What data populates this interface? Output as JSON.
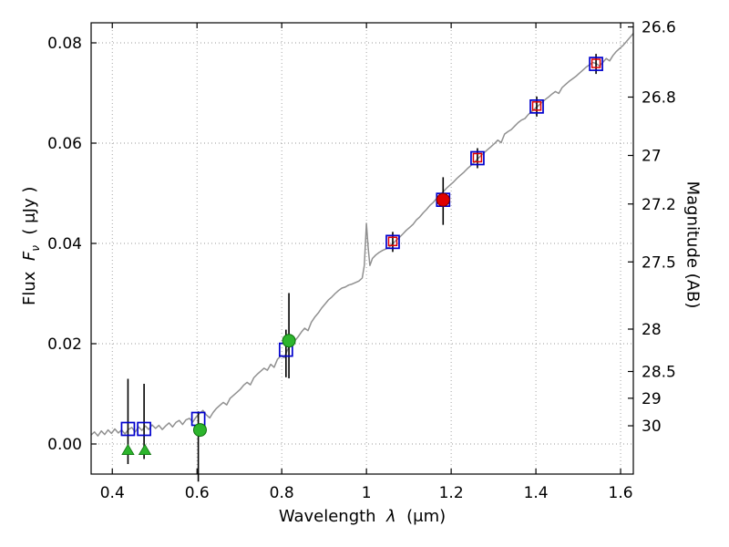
{
  "figure": {
    "xlabel": {
      "prefix": "Wavelength",
      "symbol": "λ",
      "suffix": "(μm)"
    },
    "ylabel": {
      "prefix": "Flux",
      "symbol": "F",
      "subscript": "ν",
      "suffix": "( μJy )"
    },
    "right_label": "Magnitude (AB)"
  },
  "chart_data": {
    "type": "line",
    "title": "",
    "xlabel": "Wavelength λ (μm)",
    "ylabel": "Flux Fν ( μJy )",
    "y2label": "Magnitude (AB)",
    "xlim": [
      0.35,
      1.63
    ],
    "ylim": [
      -0.006,
      0.084
    ],
    "grid": true,
    "legend": "none",
    "x_ticks": {
      "values": [
        0.4,
        0.6,
        0.8,
        1.0,
        1.2,
        1.4,
        1.6
      ],
      "labels": [
        "0.4",
        "0.6",
        "0.8",
        "1",
        "1.2",
        "1.4",
        "1.6"
      ]
    },
    "y_ticks": {
      "values": [
        0.0,
        0.02,
        0.04,
        0.06,
        0.08
      ],
      "labels": [
        "0.00",
        "0.02",
        "0.04",
        "0.06",
        "0.08"
      ]
    },
    "y2_ticks": {
      "magnitudes": [
        26.6,
        26.8,
        27.0,
        27.2,
        27.5,
        28.0,
        28.5,
        29.0,
        30.0
      ],
      "labels": [
        "26.6",
        "26.8",
        "27",
        "27.2",
        "27.5",
        "28",
        "28.5",
        "29",
        "30"
      ],
      "mag_zeropoint": 23.9
    },
    "colors": {
      "spectrum": "#909090",
      "blue": "#0000cd",
      "red": "#e00000",
      "green": "#2db52d",
      "errorbar": "#000000",
      "grid": "#9a9a9a",
      "frame": "#000000"
    },
    "spectrum": {
      "x": [
        0.35,
        0.358,
        0.366,
        0.374,
        0.382,
        0.39,
        0.398,
        0.406,
        0.414,
        0.422,
        0.43,
        0.438,
        0.446,
        0.454,
        0.462,
        0.47,
        0.478,
        0.486,
        0.494,
        0.502,
        0.51,
        0.518,
        0.526,
        0.534,
        0.542,
        0.55,
        0.558,
        0.566,
        0.574,
        0.582,
        0.59,
        0.598,
        0.606,
        0.614,
        0.622,
        0.63,
        0.638,
        0.646,
        0.654,
        0.662,
        0.67,
        0.678,
        0.686,
        0.694,
        0.702,
        0.71,
        0.718,
        0.726,
        0.734,
        0.742,
        0.75,
        0.758,
        0.766,
        0.774,
        0.782,
        0.79,
        0.798,
        0.806,
        0.814,
        0.822,
        0.83,
        0.838,
        0.846,
        0.854,
        0.862,
        0.87,
        0.878,
        0.886,
        0.894,
        0.902,
        0.91,
        0.918,
        0.926,
        0.934,
        0.942,
        0.95,
        0.958,
        0.966,
        0.974,
        0.982,
        0.99,
        0.995,
        1.0,
        1.004,
        1.008,
        1.014,
        1.022,
        1.03,
        1.038,
        1.046,
        1.054,
        1.062,
        1.07,
        1.078,
        1.086,
        1.094,
        1.102,
        1.11,
        1.118,
        1.126,
        1.134,
        1.142,
        1.15,
        1.158,
        1.166,
        1.174,
        1.182,
        1.19,
        1.198,
        1.206,
        1.214,
        1.222,
        1.23,
        1.238,
        1.246,
        1.254,
        1.262,
        1.27,
        1.278,
        1.286,
        1.294,
        1.302,
        1.31,
        1.318,
        1.326,
        1.334,
        1.342,
        1.35,
        1.358,
        1.366,
        1.374,
        1.382,
        1.39,
        1.398,
        1.406,
        1.414,
        1.422,
        1.43,
        1.438,
        1.446,
        1.454,
        1.462,
        1.47,
        1.478,
        1.486,
        1.494,
        1.502,
        1.51,
        1.518,
        1.526,
        1.534,
        1.542,
        1.55,
        1.558,
        1.566,
        1.574,
        1.582,
        1.59,
        1.598,
        1.606,
        1.614,
        1.622,
        1.63
      ],
      "y": [
        0.0018,
        0.0024,
        0.0016,
        0.0026,
        0.0019,
        0.0028,
        0.0021,
        0.003,
        0.0022,
        0.0028,
        0.002,
        0.0029,
        0.0033,
        0.0024,
        0.0034,
        0.0027,
        0.0036,
        0.0029,
        0.0038,
        0.0031,
        0.0037,
        0.0029,
        0.0036,
        0.0042,
        0.0034,
        0.0043,
        0.0047,
        0.0039,
        0.0048,
        0.0051,
        0.0044,
        0.0054,
        0.0061,
        0.0067,
        0.0058,
        0.0052,
        0.0063,
        0.0071,
        0.0077,
        0.0083,
        0.0078,
        0.0091,
        0.0097,
        0.0103,
        0.0109,
        0.0117,
        0.0123,
        0.0118,
        0.0132,
        0.0139,
        0.0145,
        0.0151,
        0.0147,
        0.0159,
        0.0153,
        0.0169,
        0.0176,
        0.0172,
        0.0189,
        0.0197,
        0.0205,
        0.0213,
        0.0223,
        0.0231,
        0.0226,
        0.0243,
        0.0253,
        0.0261,
        0.0271,
        0.0279,
        0.0287,
        0.0293,
        0.03,
        0.0306,
        0.0311,
        0.0313,
        0.0317,
        0.0319,
        0.0322,
        0.0325,
        0.0331,
        0.0356,
        0.044,
        0.0392,
        0.0356,
        0.037,
        0.0377,
        0.0382,
        0.0386,
        0.0389,
        0.0393,
        0.04,
        0.0406,
        0.0412,
        0.0419,
        0.0426,
        0.0432,
        0.0438,
        0.0447,
        0.0453,
        0.0461,
        0.0468,
        0.0476,
        0.0482,
        0.049,
        0.0497,
        0.0504,
        0.0511,
        0.0517,
        0.0523,
        0.053,
        0.0536,
        0.0542,
        0.0549,
        0.0555,
        0.0561,
        0.0568,
        0.0575,
        0.0581,
        0.0587,
        0.0593,
        0.0599,
        0.0606,
        0.0601,
        0.0618,
        0.0623,
        0.0627,
        0.0634,
        0.0641,
        0.0646,
        0.0649,
        0.0657,
        0.0663,
        0.0669,
        0.0675,
        0.0681,
        0.0687,
        0.0692,
        0.0698,
        0.0703,
        0.0699,
        0.0711,
        0.0717,
        0.0723,
        0.0728,
        0.0733,
        0.0739,
        0.0745,
        0.0751,
        0.0756,
        0.0761,
        0.0759,
        0.0754,
        0.0761,
        0.0769,
        0.0764,
        0.0775,
        0.0783,
        0.0789,
        0.0795,
        0.0803,
        0.0811,
        0.0819
      ]
    },
    "points": {
      "blue_squares": [
        {
          "x": 0.437,
          "y": 0.003,
          "elo": 0.007,
          "ehi": 0.01
        },
        {
          "x": 0.475,
          "y": 0.003,
          "elo": 0.006,
          "ehi": 0.009
        },
        {
          "x": 0.603,
          "y": 0.005,
          "elo": 0.0125,
          "ehi": 0.0015
        },
        {
          "x": 0.81,
          "y": 0.0188,
          "elo": 0.0055,
          "ehi": 0.004
        },
        {
          "x": 1.062,
          "y": 0.0403,
          "err": 0.002
        },
        {
          "x": 1.181,
          "y": 0.0487,
          "err": 0.0
        },
        {
          "x": 1.262,
          "y": 0.057,
          "err": 0.002
        },
        {
          "x": 1.402,
          "y": 0.0673,
          "err": 0.002
        },
        {
          "x": 1.542,
          "y": 0.0758,
          "err": 0.002
        }
      ],
      "red_squares": [
        {
          "x": 1.062,
          "y": 0.0404
        },
        {
          "x": 1.262,
          "y": 0.0571
        },
        {
          "x": 1.402,
          "y": 0.0674
        },
        {
          "x": 1.542,
          "y": 0.0759
        }
      ],
      "green_circles": [
        {
          "x": 0.607,
          "y": 0.0028,
          "err": 0.0
        },
        {
          "x": 0.817,
          "y": 0.0206,
          "elo": 0.0075,
          "ehi": 0.0095
        }
      ],
      "red_circles": [
        {
          "x": 1.181,
          "y": 0.0487,
          "elo": 0.005,
          "ehi": 0.0045
        }
      ],
      "green_triangles": [
        {
          "x": 0.437,
          "y": -0.0012
        },
        {
          "x": 0.477,
          "y": -0.0012
        }
      ]
    }
  }
}
